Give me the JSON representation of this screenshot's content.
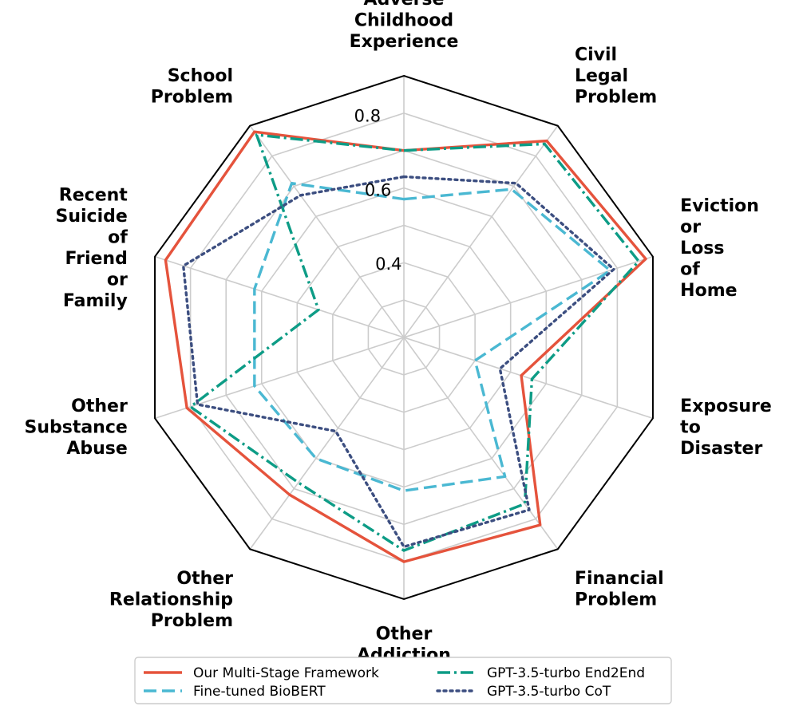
{
  "chart_data": {
    "type": "radar",
    "title": "",
    "rlim": [
      0.2,
      0.9
    ],
    "rticks": [
      0.4,
      0.6,
      0.8
    ],
    "rtick_labels": [
      "0.4",
      "0.6",
      "0.8"
    ],
    "grid": true,
    "legend_position": "bottom-center",
    "categories": [
      "Adverse Childhood Experience",
      "Civil Legal Problem",
      "Eviction or Loss of Home",
      "Exposure to Disaster",
      "Financial Problem",
      "Other Addiction",
      "Other Relationship Problem",
      "Other Substance Abuse",
      "Recent Suicide of Friend or Family",
      "School Problem"
    ],
    "series": [
      {
        "name": "Our Multi-Stage Framework",
        "color": "#e5533c",
        "dash": "solid",
        "values": [
          0.7,
          0.85,
          0.88,
          0.53,
          0.82,
          0.8,
          0.72,
          0.81,
          0.87,
          0.88
        ]
      },
      {
        "name": "Fine-tuned BioBERT",
        "color": "#4ab8d2",
        "dash": "dashed",
        "values": [
          0.57,
          0.69,
          0.78,
          0.4,
          0.66,
          0.61,
          0.6,
          0.62,
          0.62,
          0.71
        ]
      },
      {
        "name": "GPT-3.5-turbo End2End",
        "color": "#0d9c86",
        "dash": "dashdot",
        "values": [
          0.7,
          0.84,
          0.86,
          0.56,
          0.75,
          0.77,
          0.68,
          0.8,
          0.44,
          0.87
        ]
      },
      {
        "name": "GPT-3.5-turbo CoT",
        "color": "#3c4e80",
        "dash": "dotted",
        "values": [
          0.63,
          0.71,
          0.79,
          0.47,
          0.77,
          0.76,
          0.51,
          0.78,
          0.82,
          0.67
        ]
      }
    ]
  },
  "axis_label_lines": [
    [
      "Adverse",
      "Childhood",
      "Experience"
    ],
    [
      "Civil",
      "Legal",
      "Problem"
    ],
    [
      "Eviction",
      "or",
      "Loss",
      "of",
      "Home"
    ],
    [
      "Exposure",
      "to",
      "Disaster"
    ],
    [
      "Financial",
      "Problem"
    ],
    [
      "Other",
      "Addiction"
    ],
    [
      "Other",
      "Relationship",
      "Problem"
    ],
    [
      "Other",
      "Substance",
      "Abuse"
    ],
    [
      "Recent",
      "Suicide",
      "of",
      "Friend",
      "or",
      "Family"
    ],
    [
      "School",
      "Problem"
    ]
  ]
}
